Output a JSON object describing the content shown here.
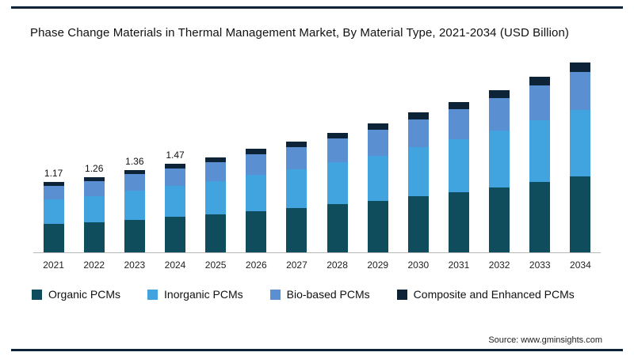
{
  "page": {
    "title": "Phase Change Materials in Thermal Management Market, By Material Type, 2021-2034 (USD Billion)",
    "source": "Source: www.gminsights.com"
  },
  "colors": {
    "accent_rule": "#0d2338",
    "axis_line": "#b7b7b7"
  },
  "chart_data": {
    "type": "bar",
    "stacked": true,
    "title": "Phase Change Materials in Thermal Management Market, By Material Type, 2021-2034 (USD Billion)",
    "xlabel": "",
    "ylabel": "USD Billion",
    "ylim": [
      0,
      3.3
    ],
    "grid": false,
    "legend_position": "bottom",
    "categories": [
      "2021",
      "2022",
      "2023",
      "2024",
      "2025",
      "2026",
      "2027",
      "2028",
      "2029",
      "2030",
      "2031",
      "2032",
      "2033",
      "2034"
    ],
    "series": [
      {
        "name": "Organic PCMs",
        "color": "#0f4c5c",
        "values": [
          0.47,
          0.5,
          0.54,
          0.59,
          0.63,
          0.68,
          0.74,
          0.8,
          0.86,
          0.93,
          1.0,
          1.08,
          1.17,
          1.26
        ]
      },
      {
        "name": "Inorganic PCMs",
        "color": "#41a4de",
        "values": [
          0.41,
          0.44,
          0.48,
          0.51,
          0.55,
          0.6,
          0.64,
          0.7,
          0.75,
          0.81,
          0.88,
          0.95,
          1.02,
          1.1
        ]
      },
      {
        "name": "Bio-based PCMs",
        "color": "#5a8fd1",
        "values": [
          0.23,
          0.25,
          0.27,
          0.29,
          0.32,
          0.34,
          0.37,
          0.4,
          0.43,
          0.46,
          0.5,
          0.54,
          0.58,
          0.63
        ]
      },
      {
        "name": "Composite and Enhanced PCMs",
        "color": "#0d2338",
        "values": [
          0.06,
          0.07,
          0.07,
          0.08,
          0.08,
          0.09,
          0.09,
          0.09,
          0.11,
          0.12,
          0.12,
          0.13,
          0.15,
          0.16
        ]
      }
    ],
    "totals": [
      1.17,
      1.26,
      1.36,
      1.47,
      1.58,
      1.71,
      1.84,
      1.99,
      2.15,
      2.32,
      2.5,
      2.7,
      2.92,
      3.15
    ],
    "total_labels": [
      "1.17",
      "1.26",
      "1.36",
      "1.47",
      "",
      "",
      "",
      "",
      "",
      "",
      "",
      "",
      "",
      ""
    ]
  }
}
